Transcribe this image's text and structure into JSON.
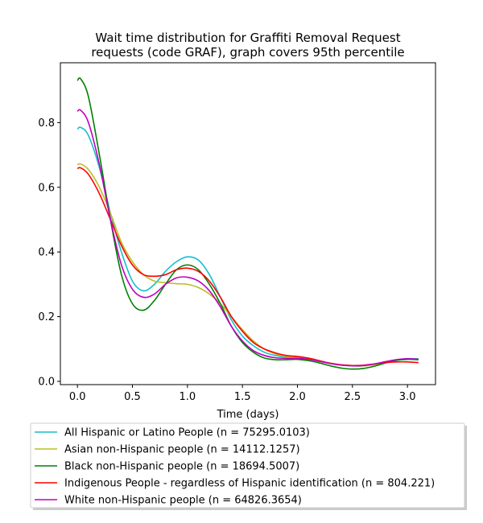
{
  "chart_data": {
    "type": "line",
    "title_line1": "Wait time distribution  for Graffiti Removal Request",
    "title_line2": "requests (code GRAF), graph covers 95th percentile",
    "xlabel": "Time (days)",
    "ylabel": "",
    "xlim": [
      -0.155,
      3.255
    ],
    "ylim": [
      -0.01,
      0.985
    ],
    "xticks": [
      0.0,
      0.5,
      1.0,
      1.5,
      2.0,
      2.5,
      3.0
    ],
    "xtick_labels": [
      "0.0",
      "0.5",
      "1.0",
      "1.5",
      "2.0",
      "2.5",
      "3.0"
    ],
    "yticks": [
      0.0,
      0.2,
      0.4,
      0.6,
      0.8
    ],
    "ytick_labels": [
      "0.0",
      "0.2",
      "0.4",
      "0.6",
      "0.8"
    ],
    "grid": false,
    "legend_position": "below-plot",
    "series": [
      {
        "name": "All Hispanic or Latino People (n = 75295.0103)",
        "color": "#17becf",
        "x": [
          0.0,
          0.03,
          0.1,
          0.2,
          0.3,
          0.4,
          0.5,
          0.6,
          0.7,
          0.8,
          0.9,
          1.0,
          1.1,
          1.2,
          1.3,
          1.4,
          1.5,
          1.6,
          1.7,
          1.8,
          1.9,
          2.0,
          2.1,
          2.2,
          2.3,
          2.4,
          2.5,
          2.6,
          2.7,
          2.8,
          2.9,
          3.0,
          3.1
        ],
        "y": [
          0.78,
          0.785,
          0.76,
          0.66,
          0.52,
          0.4,
          0.31,
          0.28,
          0.3,
          0.34,
          0.37,
          0.385,
          0.375,
          0.33,
          0.26,
          0.19,
          0.14,
          0.11,
          0.09,
          0.08,
          0.075,
          0.075,
          0.07,
          0.063,
          0.055,
          0.05,
          0.048,
          0.048,
          0.052,
          0.06,
          0.067,
          0.07,
          0.07
        ]
      },
      {
        "name": "Asian non-Hispanic people (n = 14112.1257)",
        "color": "#bcbd22",
        "x": [
          0.0,
          0.03,
          0.1,
          0.2,
          0.3,
          0.4,
          0.5,
          0.6,
          0.7,
          0.8,
          0.9,
          1.0,
          1.1,
          1.2,
          1.3,
          1.4,
          1.5,
          1.6,
          1.7,
          1.8,
          1.9,
          2.0,
          2.1,
          2.2,
          2.3,
          2.4,
          2.5,
          2.6,
          2.7,
          2.8,
          2.9,
          3.0,
          3.1
        ],
        "y": [
          0.67,
          0.672,
          0.655,
          0.6,
          0.52,
          0.43,
          0.37,
          0.33,
          0.31,
          0.305,
          0.302,
          0.3,
          0.29,
          0.27,
          0.24,
          0.2,
          0.16,
          0.125,
          0.1,
          0.085,
          0.077,
          0.073,
          0.068,
          0.062,
          0.056,
          0.051,
          0.048,
          0.048,
          0.051,
          0.058,
          0.065,
          0.068,
          0.068
        ]
      },
      {
        "name": "Black non-Hispanic people (n = 18694.5007)",
        "color": "#008000",
        "x": [
          0.0,
          0.03,
          0.1,
          0.2,
          0.3,
          0.4,
          0.5,
          0.6,
          0.7,
          0.8,
          0.9,
          1.0,
          1.1,
          1.2,
          1.3,
          1.4,
          1.5,
          1.6,
          1.7,
          1.8,
          1.9,
          2.0,
          2.1,
          2.2,
          2.3,
          2.4,
          2.5,
          2.6,
          2.7,
          2.8,
          2.9,
          3.0,
          3.1
        ],
        "y": [
          0.93,
          0.935,
          0.88,
          0.7,
          0.5,
          0.33,
          0.24,
          0.22,
          0.25,
          0.3,
          0.345,
          0.36,
          0.345,
          0.3,
          0.24,
          0.17,
          0.12,
          0.09,
          0.072,
          0.067,
          0.067,
          0.068,
          0.064,
          0.057,
          0.048,
          0.041,
          0.038,
          0.04,
          0.047,
          0.057,
          0.065,
          0.068,
          0.067
        ]
      },
      {
        "name": "Indigenous People - regardless of Hispanic identification (n = 804.221)",
        "color": "#ff0000",
        "x": [
          0.0,
          0.03,
          0.1,
          0.2,
          0.3,
          0.4,
          0.5,
          0.6,
          0.7,
          0.8,
          0.9,
          1.0,
          1.1,
          1.2,
          1.3,
          1.4,
          1.5,
          1.6,
          1.7,
          1.8,
          1.9,
          2.0,
          2.1,
          2.2,
          2.3,
          2.4,
          2.5,
          2.6,
          2.7,
          2.8,
          2.9,
          3.0,
          3.1
        ],
        "y": [
          0.658,
          0.66,
          0.64,
          0.58,
          0.5,
          0.42,
          0.36,
          0.33,
          0.325,
          0.33,
          0.345,
          0.35,
          0.34,
          0.31,
          0.26,
          0.2,
          0.155,
          0.12,
          0.1,
          0.088,
          0.08,
          0.077,
          0.072,
          0.064,
          0.056,
          0.051,
          0.049,
          0.05,
          0.054,
          0.058,
          0.06,
          0.06,
          0.058
        ]
      },
      {
        "name": "White non-Hispanic people (n = 64826.3654)",
        "color": "#bf00bf",
        "x": [
          0.0,
          0.03,
          0.1,
          0.2,
          0.3,
          0.4,
          0.5,
          0.6,
          0.7,
          0.8,
          0.9,
          1.0,
          1.1,
          1.2,
          1.3,
          1.4,
          1.5,
          1.6,
          1.7,
          1.8,
          1.9,
          2.0,
          2.1,
          2.2,
          2.3,
          2.4,
          2.5,
          2.6,
          2.7,
          2.8,
          2.9,
          3.0,
          3.1
        ],
        "y": [
          0.835,
          0.838,
          0.8,
          0.67,
          0.5,
          0.36,
          0.285,
          0.26,
          0.27,
          0.3,
          0.32,
          0.322,
          0.31,
          0.28,
          0.23,
          0.17,
          0.125,
          0.095,
          0.08,
          0.073,
          0.071,
          0.071,
          0.068,
          0.062,
          0.055,
          0.05,
          0.048,
          0.049,
          0.054,
          0.061,
          0.067,
          0.07,
          0.068
        ]
      }
    ]
  }
}
